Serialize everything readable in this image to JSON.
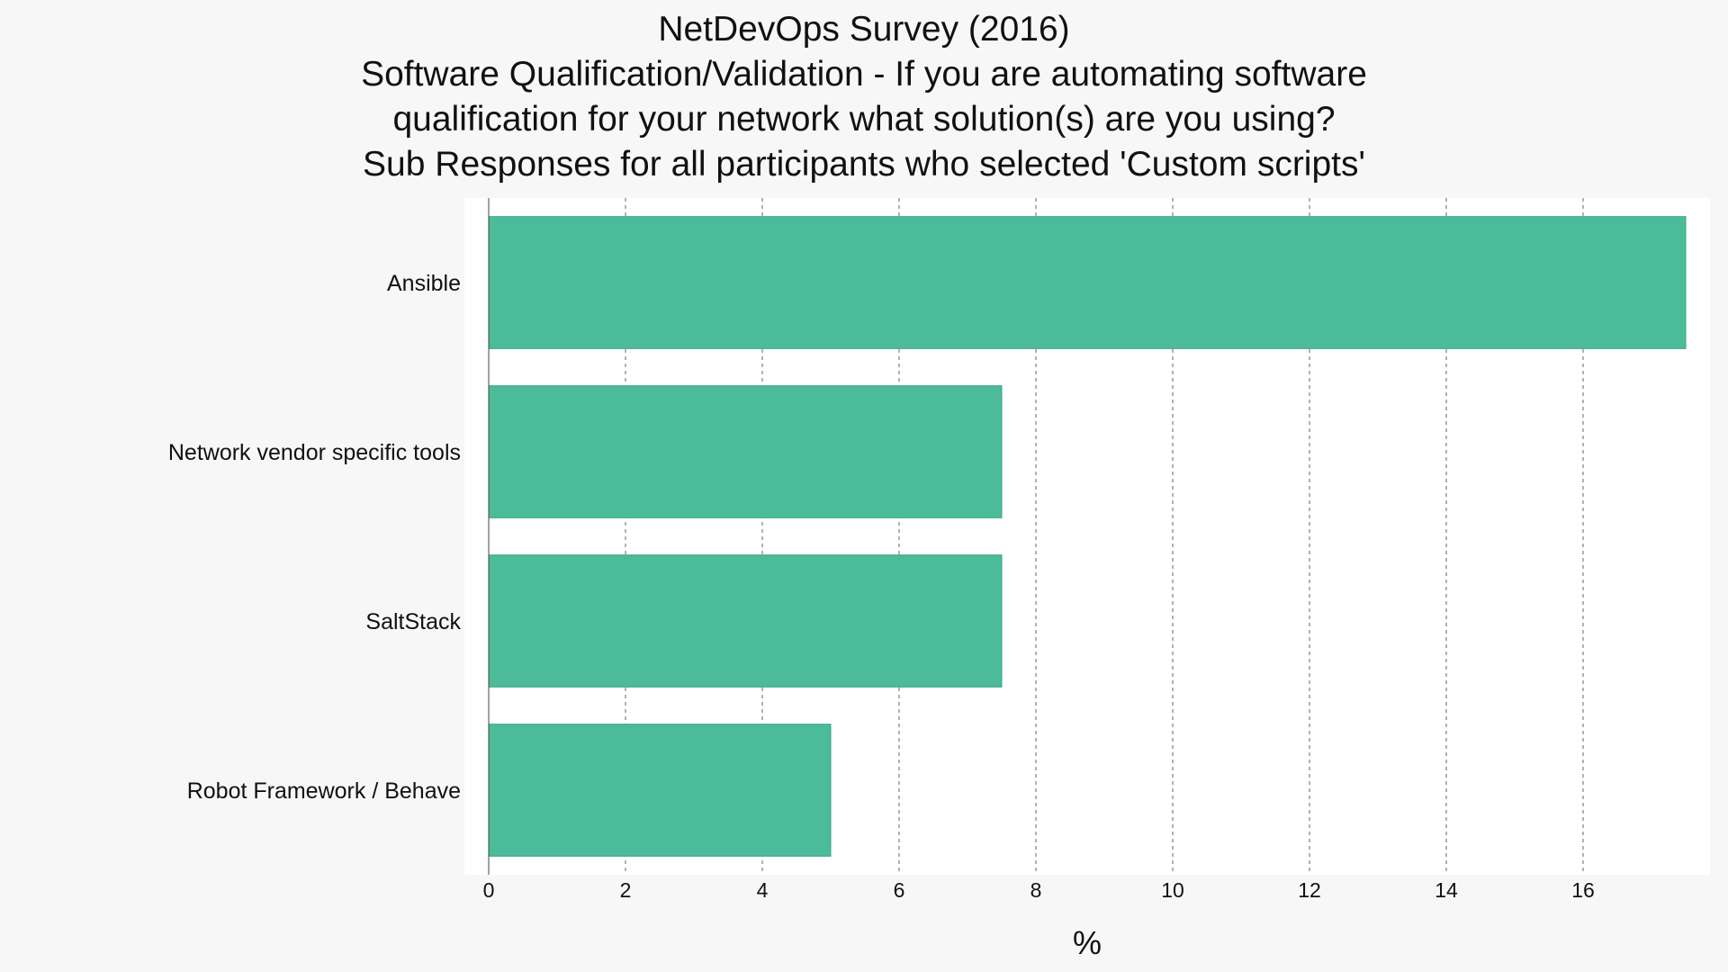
{
  "chart_data": {
    "type": "bar",
    "orientation": "horizontal",
    "title_lines": [
      "NetDevOps Survey (2016)",
      "Software Qualification/Validation - If you are automating software",
      "qualification for your network what solution(s) are you using?",
      "Sub Responses for all participants who selected 'Custom scripts'"
    ],
    "categories": [
      "Ansible",
      "Network vendor specific tools",
      "SaltStack",
      "Robot Framework / Behave"
    ],
    "values": [
      17.5,
      7.5,
      7.5,
      5.0
    ],
    "xlabel": "%",
    "ylabel": "",
    "xlim": [
      0,
      17.8
    ],
    "xticks": [
      0,
      2,
      4,
      6,
      8,
      10,
      12,
      14,
      16
    ],
    "grid": true,
    "bar_color": "#4cbb99"
  }
}
